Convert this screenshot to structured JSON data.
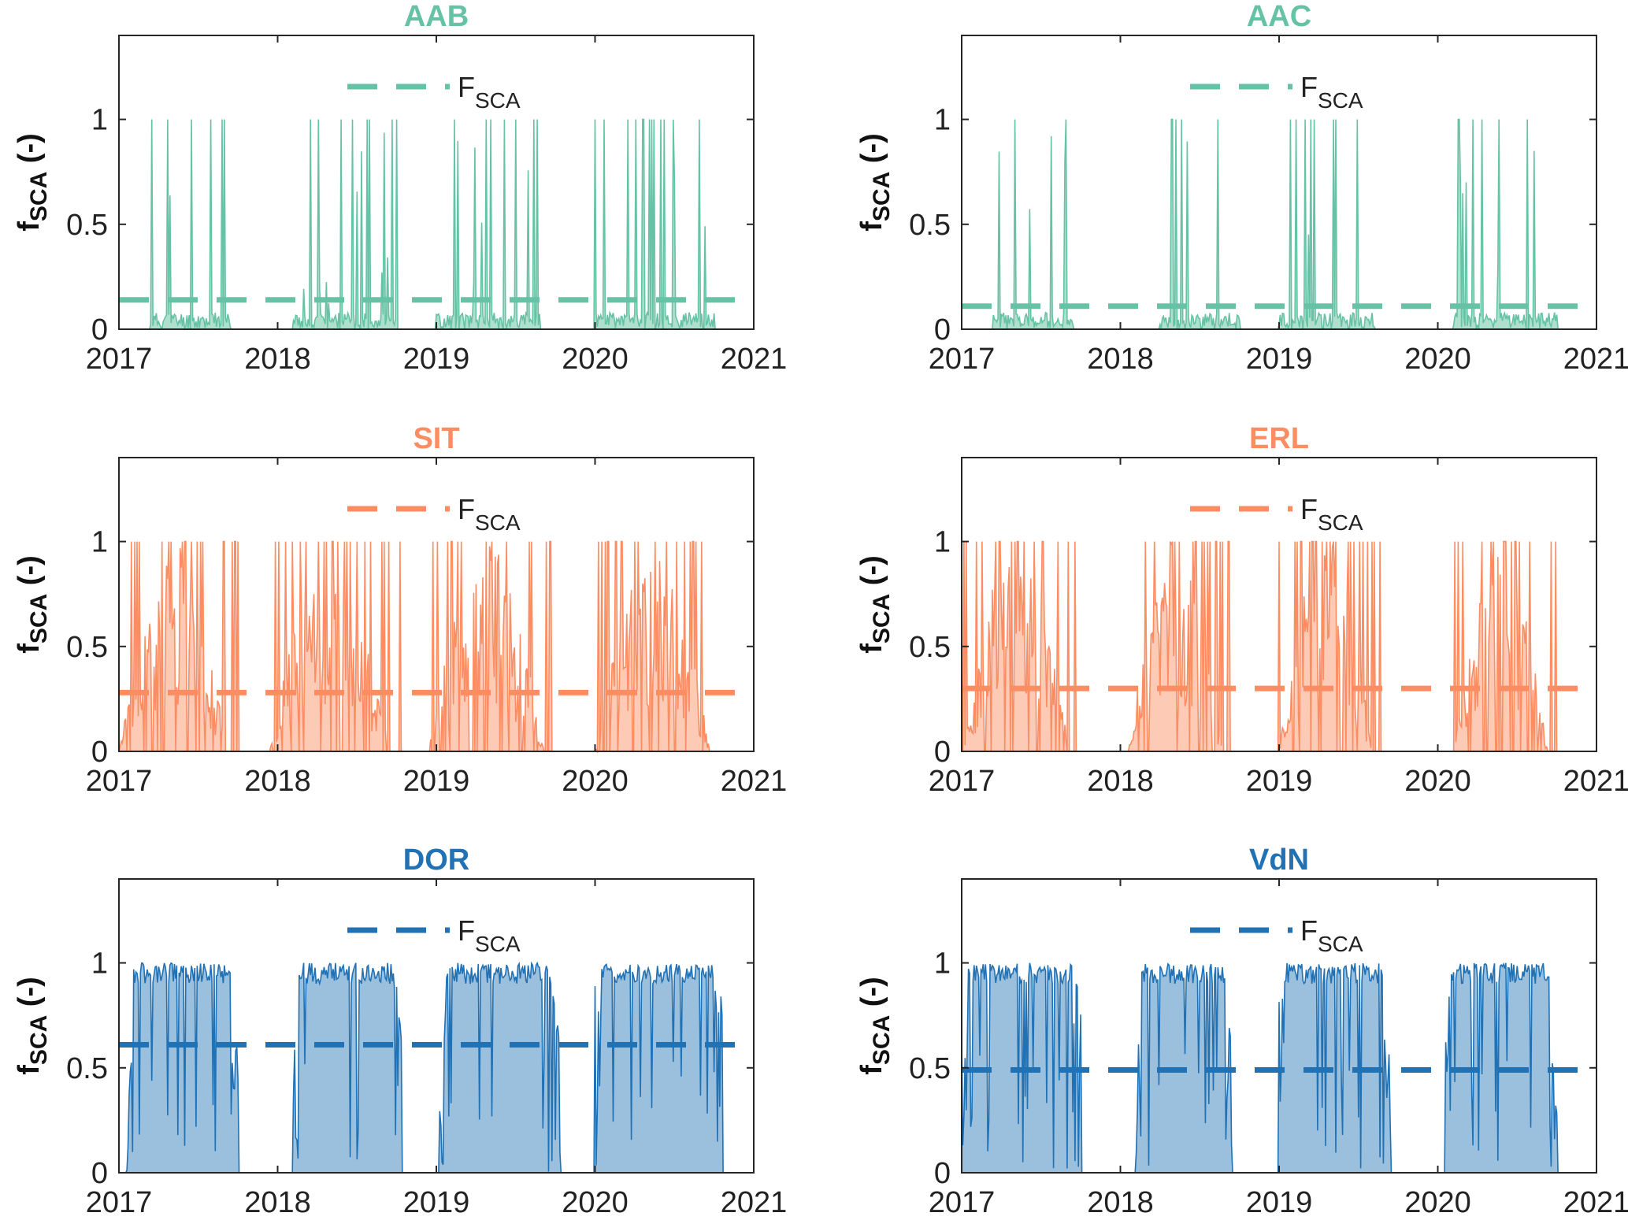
{
  "chart_data": [
    {
      "type": "area",
      "title": "AAB",
      "color": "#66c2a5",
      "fill": "#a6dcc8",
      "xlabel": "",
      "ylabel": "f",
      "ylabel_sub": "SCA",
      "ylabel_suffix": " (-)",
      "legend_label": "F",
      "legend_sub": "SCA",
      "xlim": [
        2017,
        2021
      ],
      "ylim": [
        0,
        1.4
      ],
      "xticks": [
        "2017",
        "2018",
        "2019",
        "2020",
        "2021"
      ],
      "yticks": [
        "0",
        "0.5",
        "1"
      ],
      "mean": 0.14,
      "seasons": [
        [
          2017.2,
          2017.7
        ],
        [
          2018.1,
          2018.75
        ],
        [
          2019.0,
          2019.65
        ],
        [
          2020.0,
          2020.75
        ]
      ],
      "density": 0.18,
      "seed": 11
    },
    {
      "type": "area",
      "title": "AAC",
      "color": "#66c2a5",
      "fill": "#a6dcc8",
      "xlabel": "",
      "ylabel": "f",
      "ylabel_sub": "SCA",
      "ylabel_suffix": " (-)",
      "legend_label": "F",
      "legend_sub": "SCA",
      "xlim": [
        2017,
        2021
      ],
      "ylim": [
        0,
        1.4
      ],
      "xticks": [
        "2017",
        "2018",
        "2019",
        "2020",
        "2021"
      ],
      "yticks": [
        "0",
        "0.5",
        "1"
      ],
      "mean": 0.11,
      "seasons": [
        [
          2017.2,
          2017.7
        ],
        [
          2018.25,
          2018.75
        ],
        [
          2019.0,
          2019.6
        ],
        [
          2020.1,
          2020.75
        ]
      ],
      "density": 0.12,
      "seed": 23
    },
    {
      "type": "area",
      "title": "SIT",
      "color": "#fc8d62",
      "fill": "#fdc4ad",
      "xlabel": "",
      "ylabel": "f",
      "ylabel_sub": "SCA",
      "ylabel_suffix": " (-)",
      "legend_label": "F",
      "legend_sub": "SCA",
      "xlim": [
        2017,
        2021
      ],
      "ylim": [
        0,
        1.4
      ],
      "xticks": [
        "2017",
        "2018",
        "2019",
        "2020",
        "2021"
      ],
      "yticks": [
        "0",
        "0.5",
        "1"
      ],
      "mean": 0.28,
      "seasons": [
        [
          2017.0,
          2017.75
        ],
        [
          2017.95,
          2018.78
        ],
        [
          2018.95,
          2019.75
        ],
        [
          2020.0,
          2020.8
        ]
      ],
      "density": 0.55,
      "seed": 37
    },
    {
      "type": "area",
      "title": "ERL",
      "color": "#fc8d62",
      "fill": "#fdc4ad",
      "xlabel": "",
      "ylabel": "f",
      "ylabel_sub": "SCA",
      "ylabel_suffix": " (-)",
      "legend_label": "F",
      "legend_sub": "SCA",
      "xlim": [
        2017,
        2021
      ],
      "ylim": [
        0,
        1.4
      ],
      "xticks": [
        "2017",
        "2018",
        "2019",
        "2020",
        "2021"
      ],
      "yticks": [
        "0",
        "0.5",
        "1"
      ],
      "mean": 0.3,
      "seasons": [
        [
          2017.0,
          2017.75
        ],
        [
          2018.05,
          2018.7
        ],
        [
          2019.0,
          2019.65
        ],
        [
          2020.1,
          2020.75
        ]
      ],
      "density": 0.55,
      "seed": 41
    },
    {
      "type": "area",
      "title": "DOR",
      "color": "#2171b5",
      "fill": "#8fb9da",
      "xlabel": "",
      "ylabel": "f",
      "ylabel_sub": "SCA",
      "ylabel_suffix": " (-)",
      "legend_label": "F",
      "legend_sub": "SCA",
      "xlim": [
        2017,
        2021
      ],
      "ylim": [
        0,
        1.4
      ],
      "xticks": [
        "2017",
        "2018",
        "2019",
        "2020",
        "2021"
      ],
      "yticks": [
        "0",
        "0.5",
        "1"
      ],
      "mean": 0.61,
      "seasons": [
        [
          2017.05,
          2017.75
        ],
        [
          2018.1,
          2018.78
        ],
        [
          2019.02,
          2019.78
        ],
        [
          2020.0,
          2020.8
        ]
      ],
      "density": 0.95,
      "seed": 53
    },
    {
      "type": "area",
      "title": "VdN",
      "color": "#2171b5",
      "fill": "#8fb9da",
      "xlabel": "",
      "ylabel": "f",
      "ylabel_sub": "SCA",
      "ylabel_suffix": " (-)",
      "legend_label": "F",
      "legend_sub": "SCA",
      "xlim": [
        2017,
        2021
      ],
      "ylim": [
        0,
        1.4
      ],
      "xticks": [
        "2017",
        "2018",
        "2019",
        "2020",
        "2021"
      ],
      "yticks": [
        "0",
        "0.5",
        "1"
      ],
      "mean": 0.49,
      "seasons": [
        [
          2017.0,
          2017.75
        ],
        [
          2018.1,
          2018.7
        ],
        [
          2019.0,
          2019.7
        ],
        [
          2020.05,
          2020.75
        ]
      ],
      "density": 0.85,
      "seed": 67
    }
  ]
}
